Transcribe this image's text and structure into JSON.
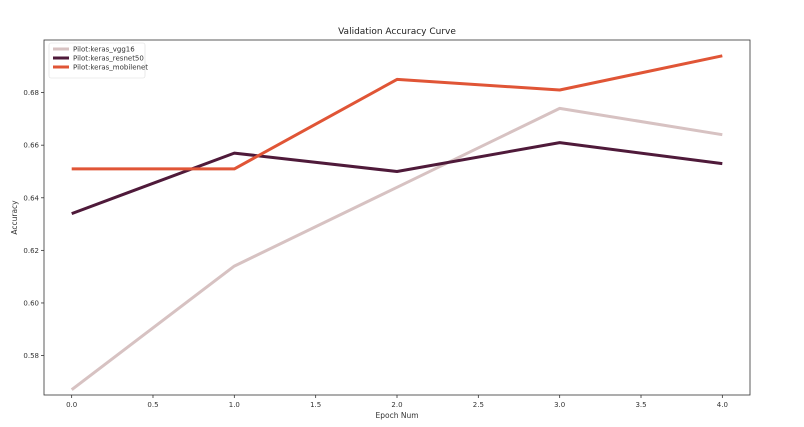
{
  "chart_data": {
    "type": "line",
    "title": "Validation Accuracy Curve",
    "xlabel": "Epoch Num",
    "ylabel": "Accuracy",
    "xlim": [
      -0.17,
      4.17
    ],
    "ylim": [
      0.565,
      0.7
    ],
    "xticks": [
      0.0,
      0.5,
      1.0,
      1.5,
      2.0,
      2.5,
      3.0,
      3.5,
      4.0
    ],
    "xtick_labels": [
      "0.0",
      "0.5",
      "1.0",
      "1.5",
      "2.0",
      "2.5",
      "3.0",
      "3.5",
      "4.0"
    ],
    "yticks": [
      0.58,
      0.6,
      0.62,
      0.64,
      0.66,
      0.68
    ],
    "ytick_labels": [
      "0.58",
      "0.60",
      "0.62",
      "0.64",
      "0.66",
      "0.68"
    ],
    "x": [
      0,
      1,
      2,
      3,
      4
    ],
    "grid": false,
    "legend_position": "top-left",
    "series": [
      {
        "name": "Pilot:keras_vgg16",
        "color": "#d7c2c2",
        "values": [
          0.567,
          0.614,
          0.644,
          0.674,
          0.664
        ]
      },
      {
        "name": "Pilot:keras_resnet50",
        "color": "#4f1a3a",
        "values": [
          0.634,
          0.657,
          0.65,
          0.661,
          0.653
        ]
      },
      {
        "name": "Pilot:keras_mobilenet",
        "color": "#e05536",
        "values": [
          0.651,
          0.651,
          0.685,
          0.681,
          0.694
        ]
      }
    ]
  }
}
